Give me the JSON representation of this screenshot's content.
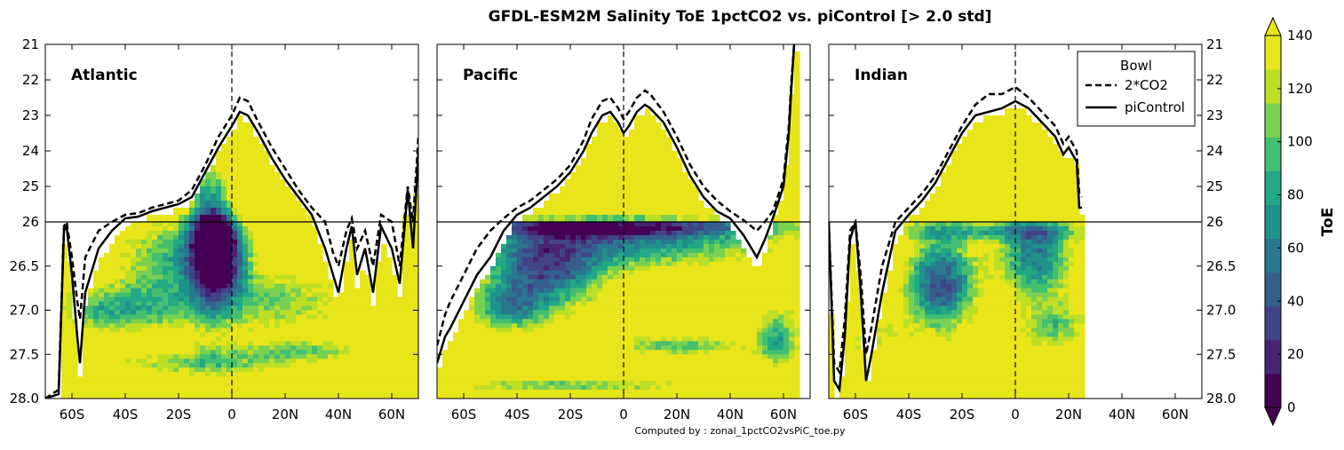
{
  "figure": {
    "title": "GFDL-ESM2M Salinity ToE 1pctCO2 vs. piControl [> 2.0 std]",
    "footer": "Computed by : zonal_1pctCO2vsPiC_toe.py"
  },
  "chart_data": {
    "type": "heatmap",
    "title": "GFDL-ESM2M Salinity ToE 1pctCO2 vs. piControl [> 2.0 std]",
    "x_ticks": [
      "60S",
      "40S",
      "20S",
      "0",
      "20N",
      "40N",
      "60N"
    ],
    "x_tick_values": [
      -60,
      -40,
      -20,
      0,
      20,
      40,
      60
    ],
    "xlim": [
      -70,
      70
    ],
    "y_ticks_upper": [
      "21",
      "22",
      "23",
      "24",
      "25",
      "26"
    ],
    "y_ticks_lower": [
      "26",
      "26.5",
      "27.0",
      "27.5",
      "28.0"
    ],
    "y_axis_note": "split density axis: 21-26 (upper, linear) and 26-28 (lower, stretched), reversed",
    "reference_line_density": 26,
    "panels": [
      {
        "name": "Atlantic",
        "data_extent": [
          -70,
          70
        ],
        "bowl_piControl": [
          [
            -70,
            28.0
          ],
          [
            -65,
            27.95
          ],
          [
            -63,
            26.1
          ],
          [
            -62,
            26.05
          ],
          [
            -60,
            26.6
          ],
          [
            -58,
            27.3
          ],
          [
            -57,
            27.6
          ],
          [
            -55,
            26.8
          ],
          [
            -50,
            26.3
          ],
          [
            -45,
            26.1
          ],
          [
            -40,
            25.9
          ],
          [
            -35,
            25.85
          ],
          [
            -30,
            25.7
          ],
          [
            -20,
            25.5
          ],
          [
            -15,
            25.3
          ],
          [
            -10,
            24.6
          ],
          [
            -5,
            23.9
          ],
          [
            0,
            23.3
          ],
          [
            3,
            22.9
          ],
          [
            6,
            23.0
          ],
          [
            10,
            23.5
          ],
          [
            15,
            24.2
          ],
          [
            20,
            24.8
          ],
          [
            25,
            25.3
          ],
          [
            30,
            25.8
          ],
          [
            35,
            26.3
          ],
          [
            38,
            26.6
          ],
          [
            40,
            26.8
          ],
          [
            43,
            26.3
          ],
          [
            45,
            26.05
          ],
          [
            47,
            26.6
          ],
          [
            50,
            26.3
          ],
          [
            53,
            26.8
          ],
          [
            56,
            26.05
          ],
          [
            60,
            26.3
          ],
          [
            63,
            26.7
          ],
          [
            66,
            25.1
          ],
          [
            68,
            26.3
          ],
          [
            70,
            24.0
          ]
        ],
        "bowl_2xCO2": [
          [
            -70,
            28.0
          ],
          [
            -65,
            27.9
          ],
          [
            -63,
            26.05
          ],
          [
            -62,
            26.0
          ],
          [
            -60,
            26.4
          ],
          [
            -58,
            26.9
          ],
          [
            -57,
            27.1
          ],
          [
            -55,
            26.4
          ],
          [
            -50,
            26.1
          ],
          [
            -45,
            26.0
          ],
          [
            -40,
            25.8
          ],
          [
            -35,
            25.75
          ],
          [
            -30,
            25.6
          ],
          [
            -20,
            25.4
          ],
          [
            -15,
            25.1
          ],
          [
            -10,
            24.4
          ],
          [
            -5,
            23.6
          ],
          [
            0,
            23.0
          ],
          [
            3,
            22.5
          ],
          [
            6,
            22.6
          ],
          [
            10,
            23.2
          ],
          [
            15,
            23.9
          ],
          [
            20,
            24.5
          ],
          [
            25,
            25.1
          ],
          [
            30,
            25.6
          ],
          [
            35,
            26.0
          ],
          [
            38,
            26.35
          ],
          [
            40,
            26.5
          ],
          [
            43,
            26.1
          ],
          [
            45,
            25.9
          ],
          [
            47,
            26.3
          ],
          [
            50,
            26.1
          ],
          [
            53,
            26.5
          ],
          [
            56,
            25.8
          ],
          [
            60,
            26.0
          ],
          [
            63,
            26.5
          ],
          [
            66,
            25.0
          ],
          [
            68,
            26.0
          ],
          [
            70,
            23.6
          ]
        ]
      },
      {
        "name": "Pacific",
        "data_extent": [
          -70,
          65
        ],
        "bowl_piControl": [
          [
            -70,
            27.6
          ],
          [
            -67,
            27.3
          ],
          [
            -65,
            27.2
          ],
          [
            -60,
            26.9
          ],
          [
            -55,
            26.6
          ],
          [
            -50,
            26.4
          ],
          [
            -45,
            26.1
          ],
          [
            -40,
            25.8
          ],
          [
            -35,
            25.6
          ],
          [
            -30,
            25.3
          ],
          [
            -25,
            25.0
          ],
          [
            -20,
            24.6
          ],
          [
            -15,
            24.0
          ],
          [
            -12,
            23.5
          ],
          [
            -8,
            23.0
          ],
          [
            -5,
            22.9
          ],
          [
            -2,
            23.2
          ],
          [
            0,
            23.5
          ],
          [
            2,
            23.3
          ],
          [
            5,
            22.9
          ],
          [
            8,
            22.7
          ],
          [
            10,
            22.8
          ],
          [
            15,
            23.2
          ],
          [
            20,
            23.9
          ],
          [
            25,
            24.7
          ],
          [
            30,
            25.3
          ],
          [
            35,
            25.7
          ],
          [
            40,
            25.9
          ],
          [
            45,
            26.15
          ],
          [
            50,
            26.4
          ],
          [
            53,
            26.2
          ],
          [
            56,
            25.9
          ],
          [
            60,
            25.0
          ],
          [
            62,
            23.5
          ],
          [
            63,
            22.2
          ],
          [
            64,
            21.0
          ]
        ],
        "bowl_2xCO2": [
          [
            -70,
            27.4
          ],
          [
            -67,
            27.05
          ],
          [
            -65,
            26.9
          ],
          [
            -60,
            26.6
          ],
          [
            -55,
            26.3
          ],
          [
            -50,
            26.1
          ],
          [
            -45,
            25.9
          ],
          [
            -40,
            25.6
          ],
          [
            -35,
            25.4
          ],
          [
            -30,
            25.1
          ],
          [
            -25,
            24.8
          ],
          [
            -20,
            24.4
          ],
          [
            -15,
            23.7
          ],
          [
            -12,
            23.1
          ],
          [
            -8,
            22.6
          ],
          [
            -5,
            22.5
          ],
          [
            -2,
            22.8
          ],
          [
            0,
            23.1
          ],
          [
            2,
            22.9
          ],
          [
            5,
            22.5
          ],
          [
            8,
            22.3
          ],
          [
            10,
            22.4
          ],
          [
            15,
            22.9
          ],
          [
            20,
            23.6
          ],
          [
            25,
            24.4
          ],
          [
            30,
            25.0
          ],
          [
            35,
            25.4
          ],
          [
            40,
            25.7
          ],
          [
            45,
            25.95
          ],
          [
            50,
            26.1
          ],
          [
            53,
            26.0
          ],
          [
            56,
            25.7
          ],
          [
            60,
            24.8
          ],
          [
            62,
            23.3
          ],
          [
            63,
            22.0
          ],
          [
            64,
            21.0
          ]
        ]
      },
      {
        "name": "Indian",
        "data_extent": [
          -70,
          25
        ],
        "bowl_piControl": [
          [
            -70,
            26.0
          ],
          [
            -68,
            27.8
          ],
          [
            -66,
            27.9
          ],
          [
            -64,
            27.3
          ],
          [
            -62,
            26.2
          ],
          [
            -60,
            26.0
          ],
          [
            -58,
            26.8
          ],
          [
            -56,
            27.8
          ],
          [
            -54,
            27.5
          ],
          [
            -50,
            26.8
          ],
          [
            -45,
            26.1
          ],
          [
            -40,
            25.8
          ],
          [
            -35,
            25.4
          ],
          [
            -30,
            24.9
          ],
          [
            -25,
            24.2
          ],
          [
            -20,
            23.5
          ],
          [
            -15,
            23.0
          ],
          [
            -10,
            22.9
          ],
          [
            -5,
            22.8
          ],
          [
            0,
            22.6
          ],
          [
            5,
            22.8
          ],
          [
            10,
            23.2
          ],
          [
            15,
            23.6
          ],
          [
            18,
            24.1
          ],
          [
            20,
            23.9
          ],
          [
            23,
            24.3
          ],
          [
            24,
            25.6
          ],
          [
            25,
            25.6
          ]
        ],
        "bowl_2xCO2": [
          [
            -70,
            26.0
          ],
          [
            -68,
            27.6
          ],
          [
            -66,
            27.7
          ],
          [
            -64,
            27.1
          ],
          [
            -62,
            26.1
          ],
          [
            -60,
            26.0
          ],
          [
            -58,
            26.6
          ],
          [
            -56,
            27.5
          ],
          [
            -54,
            27.2
          ],
          [
            -50,
            26.5
          ],
          [
            -45,
            26.0
          ],
          [
            -40,
            25.6
          ],
          [
            -35,
            25.2
          ],
          [
            -30,
            24.7
          ],
          [
            -25,
            24.0
          ],
          [
            -20,
            23.3
          ],
          [
            -15,
            22.7
          ],
          [
            -10,
            22.4
          ],
          [
            -5,
            22.4
          ],
          [
            0,
            22.2
          ],
          [
            5,
            22.5
          ],
          [
            10,
            22.9
          ],
          [
            15,
            23.3
          ],
          [
            18,
            23.8
          ],
          [
            20,
            23.6
          ],
          [
            23,
            24.0
          ],
          [
            24,
            25.2
          ],
          [
            25,
            25.3
          ]
        ]
      }
    ],
    "legend": {
      "title": "Bowl",
      "entries": [
        {
          "label": "2*CO2",
          "style": "dashed"
        },
        {
          "label": "piControl",
          "style": "solid"
        }
      ],
      "placement": "top-right of Indian panel"
    },
    "colorbar": {
      "label": "ToE",
      "ticks": [
        "0",
        "20",
        "40",
        "60",
        "80",
        "100",
        "120",
        "140"
      ],
      "range": [
        0,
        140
      ],
      "step": 10,
      "colors": [
        "#440154",
        "#482475",
        "#414487",
        "#355f8d",
        "#2a788e",
        "#21918c",
        "#22a884",
        "#44bf70",
        "#7ad151",
        "#bddf26",
        "#e8e51a"
      ]
    }
  }
}
